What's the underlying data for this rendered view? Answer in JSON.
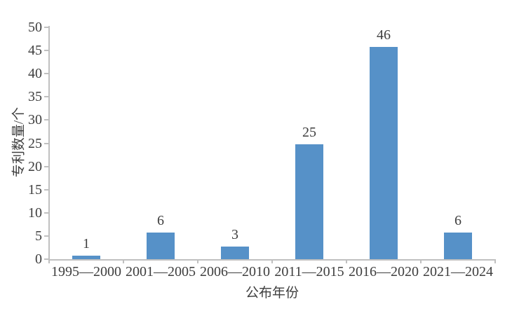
{
  "chart_data": {
    "type": "bar",
    "title": "",
    "categories": [
      "1995—2000",
      "2001—2005",
      "2006—2010",
      "2011—2015",
      "2016—2020",
      "2021—2024"
    ],
    "values": [
      1,
      6,
      3,
      25,
      46,
      6
    ],
    "data_labels": [
      1,
      6,
      3,
      25,
      46,
      6
    ],
    "xlabel": "公布年份",
    "ylabel": "专利数量/个",
    "ylim": [
      0,
      50
    ],
    "ytick_step": 5,
    "yticks": [
      0,
      5,
      10,
      15,
      20,
      25,
      30,
      35,
      40,
      45,
      50
    ],
    "grid": false,
    "legend": "none",
    "background_color": "#ffffff",
    "colors": {
      "bar": "#5691c8",
      "axis": "#c0c0c0",
      "text": "#3e3e3e"
    }
  }
}
